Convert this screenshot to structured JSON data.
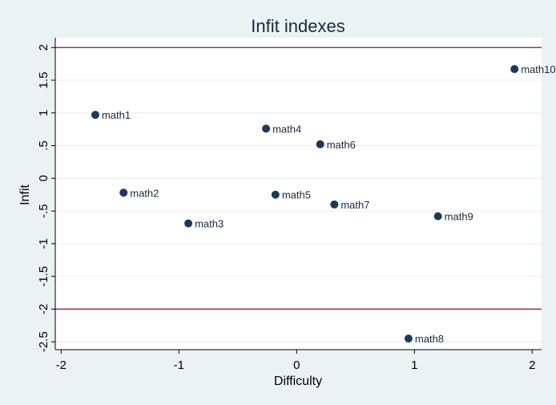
{
  "chart_data": {
    "type": "scatter",
    "title": "Infit indexes",
    "xlabel": "Difficulty",
    "ylabel": "Infit",
    "xlim": [
      -2.05,
      2.08
    ],
    "ylim": [
      -2.62,
      2.15
    ],
    "x_ticks": [
      {
        "value": -2,
        "label": "-2"
      },
      {
        "value": -1,
        "label": "-1"
      },
      {
        "value": 0,
        "label": "0"
      },
      {
        "value": 1,
        "label": "1"
      },
      {
        "value": 2,
        "label": "2"
      }
    ],
    "y_ticks": [
      {
        "value": 2,
        "label": "2"
      },
      {
        "value": 1.5,
        "label": "1.5"
      },
      {
        "value": 1,
        "label": "1"
      },
      {
        "value": 0.5,
        "label": ".5"
      },
      {
        "value": 0,
        "label": "0"
      },
      {
        "value": -0.5,
        "label": "-.5"
      },
      {
        "value": -1,
        "label": "-1"
      },
      {
        "value": -1.5,
        "label": "-1.5"
      },
      {
        "value": -2,
        "label": "-2"
      },
      {
        "value": -2.5,
        "label": "-2.5"
      }
    ],
    "reference_lines": [
      2,
      -2
    ],
    "grid": true,
    "points": [
      {
        "label": "math1",
        "x": -1.71,
        "y": 0.97
      },
      {
        "label": "math2",
        "x": -1.47,
        "y": -0.22
      },
      {
        "label": "math3",
        "x": -0.92,
        "y": -0.69
      },
      {
        "label": "math4",
        "x": -0.26,
        "y": 0.76
      },
      {
        "label": "math5",
        "x": -0.18,
        "y": -0.25
      },
      {
        "label": "math6",
        "x": 0.2,
        "y": 0.52
      },
      {
        "label": "math7",
        "x": 0.32,
        "y": -0.4
      },
      {
        "label": "math8",
        "x": 0.95,
        "y": -2.45
      },
      {
        "label": "math9",
        "x": 1.2,
        "y": -0.58
      },
      {
        "label": "math10",
        "x": 1.85,
        "y": 1.67
      }
    ]
  },
  "colors": {
    "background": "#eaf2f3",
    "plot_background": "#ffffff",
    "grid": "#e6eef0",
    "reference_line": "#8b1a2e",
    "marker": "#1a3a5c",
    "axis": "#000000"
  }
}
